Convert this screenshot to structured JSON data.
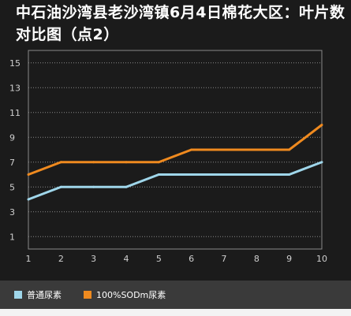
{
  "title": "中石油沙湾县老沙湾镇6月4日棉花大区：叶片数对比图（点2）",
  "colors": {
    "background": "#1b1b1b",
    "grid": "#8a8a8a",
    "axis_text": "#cfcfcf",
    "legend_bg": "#3a3a3a"
  },
  "chart_data": {
    "type": "line",
    "title": "中石油沙湾县老沙湾镇6月4日棉花大区：叶片数对比图（点2）",
    "xlabel": "",
    "ylabel": "",
    "x": [
      1,
      2,
      3,
      4,
      5,
      6,
      7,
      8,
      9,
      10
    ],
    "xticks": [
      "1",
      "2",
      "3",
      "4",
      "5",
      "6",
      "7",
      "8",
      "9",
      "10"
    ],
    "yticks": [
      "1",
      "3",
      "5",
      "7",
      "9",
      "11",
      "13",
      "15"
    ],
    "ylim": [
      0,
      16
    ],
    "grid": true,
    "legend_position": "bottom",
    "series": [
      {
        "name": "普通尿素",
        "color": "#9fd6ea",
        "values": [
          4,
          5,
          5,
          5,
          6,
          6,
          6,
          6,
          6,
          7
        ]
      },
      {
        "name": "100%SODm尿素",
        "color": "#ef8a1f",
        "values": [
          6,
          7,
          7,
          7,
          7,
          8,
          8,
          8,
          8,
          10
        ]
      }
    ]
  }
}
